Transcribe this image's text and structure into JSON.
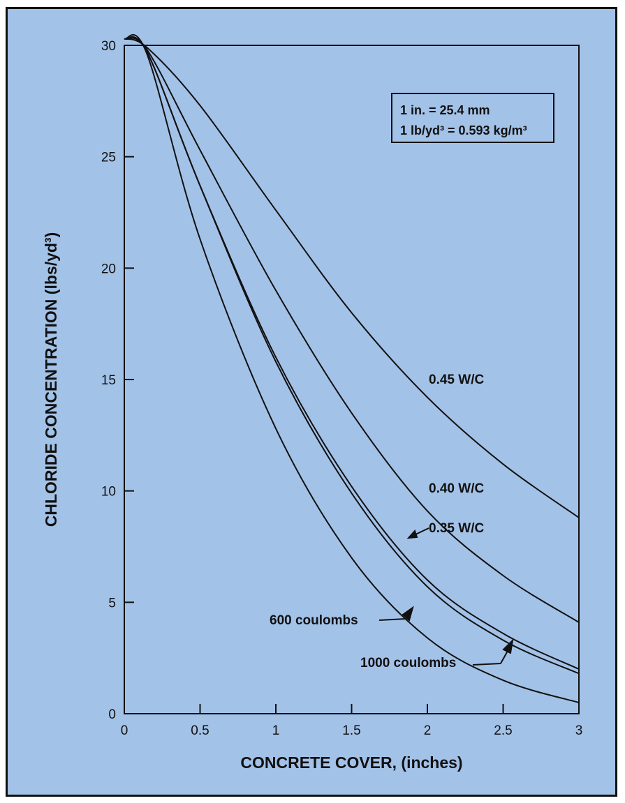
{
  "chart_data": {
    "type": "line",
    "title": "",
    "xlabel": "CONCRETE COVER, (inches)",
    "ylabel": "CHLORIDE CONCENTRATION (lbs/yd³)",
    "xlim": [
      0,
      3
    ],
    "ylim": [
      0,
      30
    ],
    "x_ticks": [
      "0",
      "0.5",
      "1",
      "1.5",
      "2",
      "2.5",
      "3"
    ],
    "y_ticks": [
      "0",
      "5",
      "10",
      "15",
      "20",
      "25",
      "30"
    ],
    "grid": false,
    "legend": "none",
    "series": [
      {
        "name": "0.45 W/C",
        "x": [
          0,
          0.15,
          0.5,
          1,
          1.5,
          2,
          2.5,
          3
        ],
        "y": [
          30.3,
          29.9,
          27.3,
          22.6,
          18.0,
          14.2,
          11.2,
          8.8
        ]
      },
      {
        "name": "0.40 W/C",
        "x": [
          0,
          0.15,
          0.5,
          1,
          1.5,
          2,
          2.5,
          3
        ],
        "y": [
          30.3,
          29.8,
          25.3,
          19.0,
          13.5,
          9.1,
          6.2,
          4.1
        ]
      },
      {
        "name": "0.35 W/C",
        "x": [
          0,
          0.15,
          0.5,
          1,
          1.5,
          2,
          2.5,
          3
        ],
        "y": [
          30.3,
          29.7,
          23.7,
          16.0,
          10.2,
          6.0,
          3.6,
          2.0
        ]
      },
      {
        "name": "1000 coulombs",
        "x": [
          0,
          0.15,
          0.5,
          1,
          1.5,
          2,
          2.5,
          3
        ],
        "y": [
          30.3,
          29.7,
          23.7,
          15.8,
          9.9,
          5.7,
          3.3,
          1.8
        ]
      },
      {
        "name": "600 coulombs",
        "x": [
          0,
          0.15,
          0.5,
          1,
          1.5,
          2,
          2.5,
          3
        ],
        "y": [
          30.3,
          29.6,
          21.3,
          12.8,
          7.0,
          3.4,
          1.5,
          0.5
        ]
      }
    ],
    "annotations": {
      "units_note_line1": "1 in. = 25.4 mm",
      "units_note_line2": "1 lb/yd³ = 0.593 kg/m³"
    },
    "colors": {
      "background": "#a3c2e8",
      "line": "#111111"
    }
  }
}
